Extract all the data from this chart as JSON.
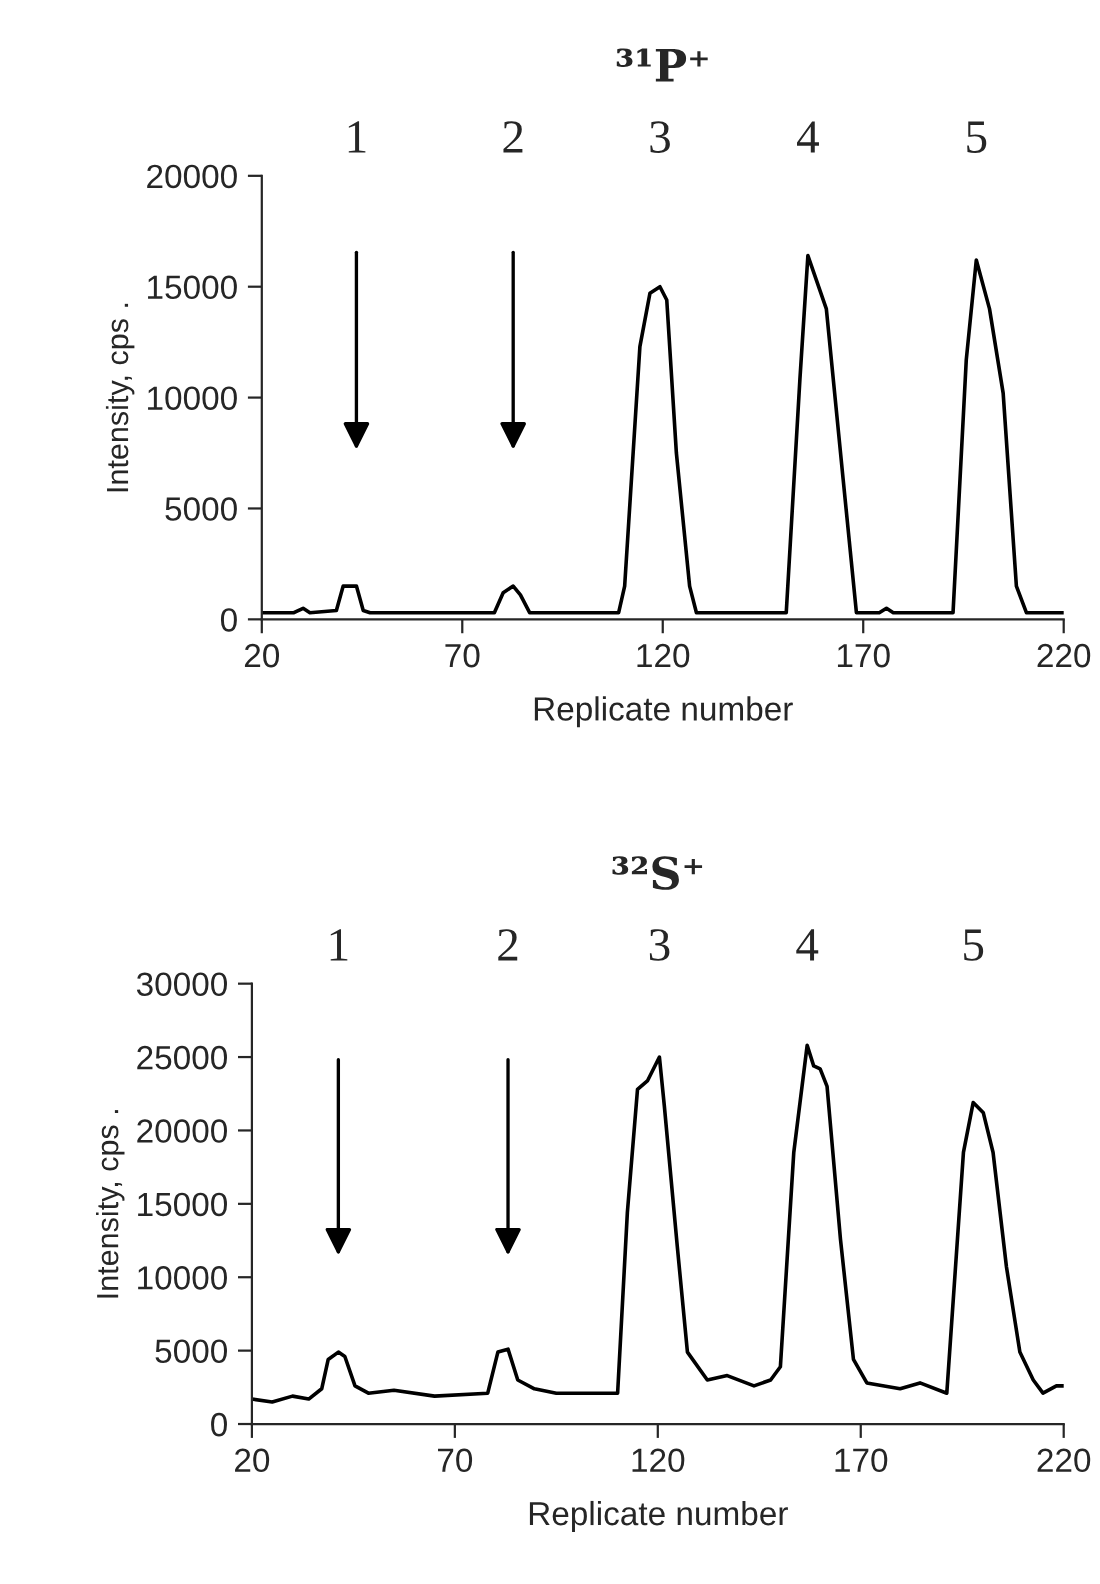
{
  "chart_data": [
    {
      "type": "line",
      "title": "³¹P⁺",
      "xlabel": "Replicate number",
      "ylabel": "Intensity, cps .",
      "xlim": [
        20,
        220
      ],
      "xticks": [
        20,
        70,
        120,
        170,
        220
      ],
      "ylim": [
        0,
        20000
      ],
      "yticks": [
        0,
        5000,
        10000,
        15000,
        20000
      ],
      "grid": false,
      "legend": false,
      "series": [
        {
          "color": "#000000",
          "x": [
            20,
            28,
            30.3,
            32,
            38.6,
            40.3,
            43.6,
            45.3,
            47,
            78,
            80.2,
            82.7,
            84.5,
            86.8,
            88,
            109,
            110.5,
            114.3,
            116.8,
            119.3,
            121,
            123.4,
            126.7,
            128.4,
            130,
            150.8,
            154.2,
            156.2,
            160.8,
            165,
            168.3,
            174,
            175.8,
            177.5,
            192.4,
            195.7,
            198.2,
            201.5,
            204.9,
            208.2,
            210.7,
            220
          ],
          "values": [
            300,
            300,
            500,
            300,
            400,
            1500,
            1500,
            400,
            300,
            300,
            1200,
            1500,
            1100,
            300,
            300,
            300,
            1500,
            12300,
            14700,
            15000,
            14400,
            7500,
            1500,
            300,
            300,
            300,
            10800,
            16400,
            14000,
            6300,
            300,
            300,
            500,
            300,
            300,
            11700,
            16200,
            14000,
            10200,
            1500,
            300,
            300
          ]
        }
      ],
      "annotations": [
        "1",
        "2",
        "3",
        "4",
        "5"
      ]
    },
    {
      "type": "line",
      "title": "³²S⁺",
      "xlabel": "Replicate number",
      "ylabel": "Intensity, cps .",
      "xlim": [
        20,
        220
      ],
      "xticks": [
        20,
        70,
        120,
        170,
        220
      ],
      "ylim": [
        0,
        30000
      ],
      "yticks": [
        0,
        5000,
        10000,
        15000,
        20000,
        25000,
        30000
      ],
      "grid": false,
      "legend": false,
      "series": [
        {
          "color": "#000000",
          "x": [
            20,
            25,
            30,
            34,
            37.2,
            38.8,
            41.3,
            42.9,
            45.4,
            48.7,
            55,
            65,
            78.1,
            80.6,
            83.1,
            85.5,
            89.6,
            95,
            106,
            110.1,
            112.5,
            115,
            117.5,
            120.4,
            121.6,
            124.8,
            127.3,
            132.2,
            137.1,
            143.7,
            147.8,
            150.2,
            153.5,
            156.8,
            158.4,
            160,
            161.7,
            165,
            168.2,
            171.5,
            179.7,
            184.6,
            191.2,
            195.3,
            197.7,
            200.2,
            202.6,
            205.9,
            209.2,
            212.5,
            214.9,
            218.2,
            220
          ],
          "values": [
            1700,
            1500,
            1900,
            1700,
            2400,
            4400,
            4900,
            4600,
            2600,
            2100,
            2300,
            1900,
            2100,
            4900,
            5100,
            3000,
            2400,
            2100,
            2100,
            2100,
            14400,
            22800,
            23400,
            25000,
            21700,
            12100,
            4900,
            3000,
            3300,
            2600,
            3000,
            3900,
            18500,
            25800,
            24400,
            24200,
            23000,
            12600,
            4400,
            2800,
            2400,
            2800,
            2100,
            18500,
            21900,
            21200,
            18500,
            10700,
            4900,
            3000,
            2100,
            2600,
            2600
          ]
        }
      ],
      "annotations": [
        "1",
        "2",
        "3",
        "4",
        "5"
      ]
    }
  ]
}
